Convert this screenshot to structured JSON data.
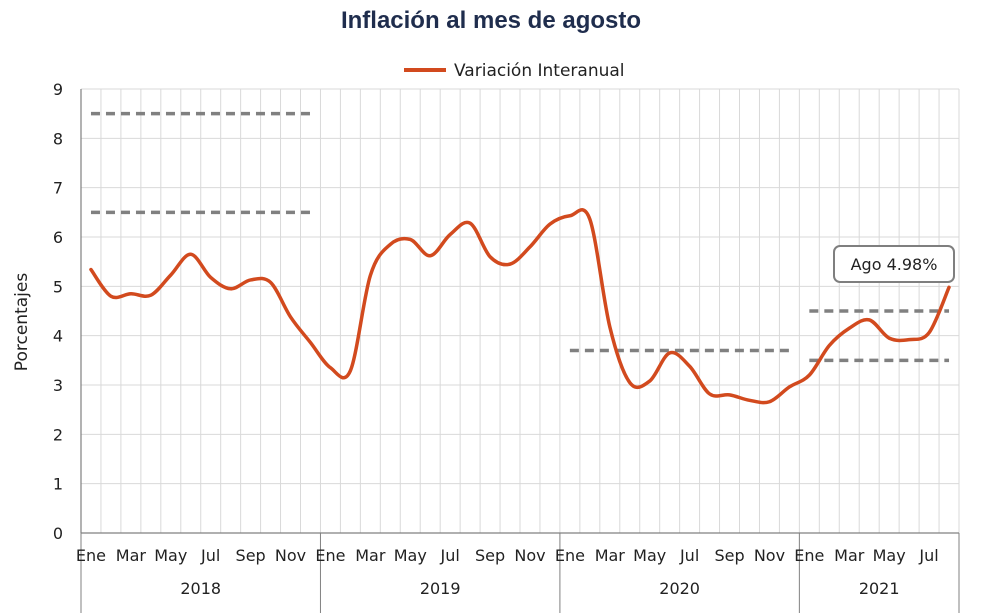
{
  "chart_data": {
    "type": "line",
    "title": "Inflación al mes de agosto",
    "ylabel": "Porcentajes",
    "xlabel": "",
    "ylim": [
      0,
      9
    ],
    "yticks": [
      "0",
      "1",
      "2",
      "3",
      "4",
      "5",
      "6",
      "7",
      "8",
      "9"
    ],
    "grid": true,
    "legend_position": "top-center",
    "month_labels": [
      "Ene",
      "Mar",
      "May",
      "Jul",
      "Sep",
      "Nov",
      "Ene",
      "Mar",
      "May",
      "Jul",
      "Sep",
      "Nov",
      "Ene",
      "Mar",
      "May",
      "Jul",
      "Sep",
      "Nov",
      "Ene",
      "Mar",
      "May",
      "Jul"
    ],
    "years": [
      "2018",
      "2019",
      "2020",
      "2021"
    ],
    "months": [
      "2018-01",
      "2018-02",
      "2018-03",
      "2018-04",
      "2018-05",
      "2018-06",
      "2018-07",
      "2018-08",
      "2018-09",
      "2018-10",
      "2018-11",
      "2018-12",
      "2019-01",
      "2019-02",
      "2019-03",
      "2019-04",
      "2019-05",
      "2019-06",
      "2019-07",
      "2019-08",
      "2019-09",
      "2019-10",
      "2019-11",
      "2019-12",
      "2020-01",
      "2020-02",
      "2020-03",
      "2020-04",
      "2020-05",
      "2020-06",
      "2020-07",
      "2020-08",
      "2020-09",
      "2020-10",
      "2020-11",
      "2020-12",
      "2021-01",
      "2021-02",
      "2021-03",
      "2021-04",
      "2021-05",
      "2021-06",
      "2021-07",
      "2021-08"
    ],
    "series": [
      {
        "name": "Variación Interanual",
        "color": "#d24a1e",
        "values": [
          5.34,
          4.8,
          4.85,
          4.82,
          5.23,
          5.65,
          5.18,
          4.95,
          5.13,
          5.08,
          4.38,
          3.86,
          3.35,
          3.29,
          5.22,
          5.85,
          5.95,
          5.62,
          6.05,
          6.28,
          5.6,
          5.45,
          5.8,
          6.26,
          6.43,
          6.36,
          4.18,
          3.05,
          3.08,
          3.65,
          3.38,
          2.82,
          2.8,
          2.69,
          2.66,
          2.96,
          3.2,
          3.8,
          4.15,
          4.32,
          3.95,
          3.92,
          4.06,
          4.98
        ]
      }
    ],
    "reference_lines": [
      {
        "y": 8.5,
        "from": "2018-01",
        "to": "2018-12",
        "color": "#808080"
      },
      {
        "y": 6.5,
        "from": "2018-01",
        "to": "2018-12",
        "color": "#808080"
      },
      {
        "y": 3.7,
        "from": "2020-01",
        "to": "2020-12",
        "color": "#808080"
      },
      {
        "y": 4.5,
        "from": "2021-01",
        "to": "2021-08",
        "color": "#808080"
      },
      {
        "y": 3.5,
        "from": "2021-01",
        "to": "2021-08",
        "color": "#808080"
      }
    ],
    "annotation": {
      "text": "Ago 4.98%",
      "month": "2021-08",
      "value": 4.98
    }
  }
}
